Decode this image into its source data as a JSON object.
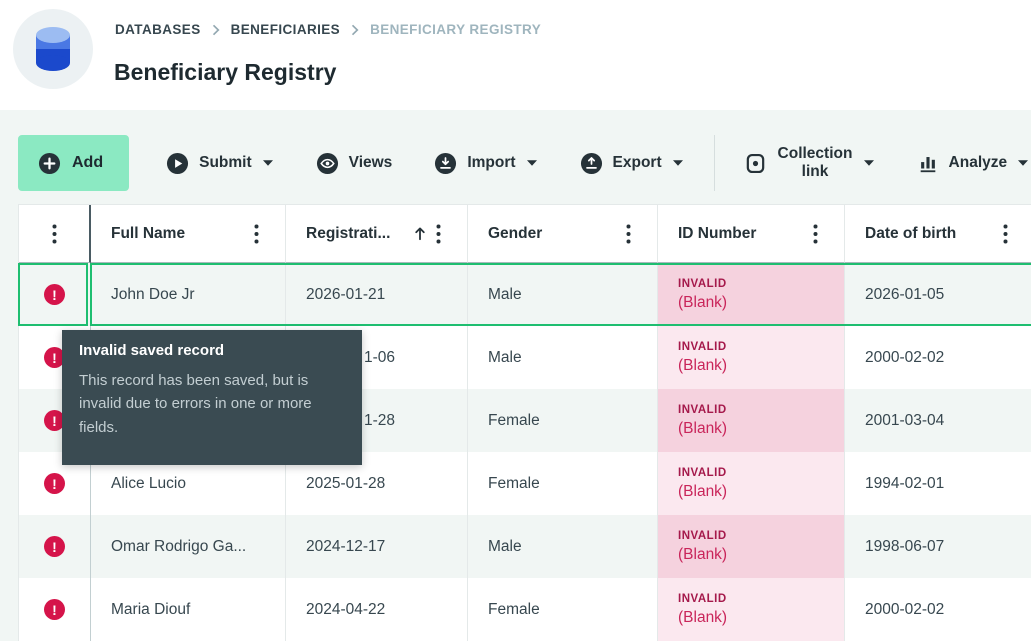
{
  "header": {
    "breadcrumb": [
      {
        "label": "DATABASES",
        "current": false
      },
      {
        "label": "BENEFICIARIES",
        "current": false
      },
      {
        "label": "BENEFICIARY REGISTRY",
        "current": true
      }
    ],
    "title": "Beneficiary Registry",
    "icon": "database-icon"
  },
  "toolbar": {
    "add": {
      "label": "Add",
      "icon": "plus-circle-icon"
    },
    "items": [
      {
        "label": "Submit",
        "icon": "play-circle-icon",
        "caret": true
      },
      {
        "label": "Views",
        "icon": "eye-icon",
        "caret": false
      },
      {
        "label": "Import",
        "icon": "import-icon",
        "caret": true
      },
      {
        "label": "Export",
        "icon": "export-icon",
        "caret": true
      },
      {
        "divider": true
      },
      {
        "label": "Collection link",
        "icon": "device-icon",
        "caret": true
      },
      {
        "label": "Analyze",
        "icon": "bar-chart-icon",
        "caret": true
      }
    ]
  },
  "table": {
    "columns": [
      {
        "label": "Full Name",
        "sorted": null
      },
      {
        "label": "Registrati...",
        "sorted": "asc"
      },
      {
        "label": "Gender",
        "sorted": null
      },
      {
        "label": "ID Number",
        "sorted": null
      },
      {
        "label": "Date of birth",
        "sorted": null
      }
    ],
    "rows": [
      {
        "error": true,
        "selected": true,
        "full_name": "John Doe Jr",
        "registration": "2026-01-21",
        "registration_partial": false,
        "gender": "Male",
        "id_number": {
          "status": "INVALID",
          "value": "(Blank)"
        },
        "date_of_birth": "2026-01-05"
      },
      {
        "error": true,
        "selected": false,
        "full_name": "",
        "registration": "1-06",
        "registration_partial": true,
        "gender": "Male",
        "id_number": {
          "status": "INVALID",
          "value": "(Blank)"
        },
        "date_of_birth": "2000-02-02"
      },
      {
        "error": true,
        "selected": false,
        "full_name": "",
        "registration": "1-28",
        "registration_partial": true,
        "gender": "Female",
        "id_number": {
          "status": "INVALID",
          "value": "(Blank)"
        },
        "date_of_birth": "2001-03-04"
      },
      {
        "error": true,
        "selected": false,
        "full_name": "Alice Lucio",
        "registration": "2025-01-28",
        "registration_partial": false,
        "gender": "Female",
        "id_number": {
          "status": "INVALID",
          "value": "(Blank)"
        },
        "date_of_birth": "1994-02-01"
      },
      {
        "error": true,
        "selected": false,
        "full_name": "Omar Rodrigo Ga...",
        "registration": "2024-12-17",
        "registration_partial": false,
        "gender": "Male",
        "id_number": {
          "status": "INVALID",
          "value": "(Blank)"
        },
        "date_of_birth": "1998-06-07"
      },
      {
        "error": true,
        "selected": false,
        "full_name": "Maria Diouf",
        "registration": "2024-04-22",
        "registration_partial": false,
        "gender": "Female",
        "id_number": {
          "status": "INVALID",
          "value": "(Blank)"
        },
        "date_of_birth": "2000-02-02"
      }
    ]
  },
  "tooltip": {
    "title": "Invalid saved record",
    "body": "This record has been saved, but is invalid due to errors in one or more fields."
  },
  "colors": {
    "accent_green": "#1EBE70",
    "add_button_bg": "#8BE9C2",
    "error_red": "#D5144A",
    "invalid_text": "#A5194B",
    "blank_text": "#C9255A",
    "pink_strong": "#F5D2DE",
    "pink_soft": "#FBE8EF",
    "tooltip_bg": "#3A4B52",
    "stripe_bg": "#F1F6F4"
  }
}
